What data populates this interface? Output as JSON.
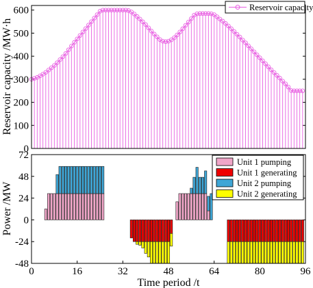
{
  "chart_data": [
    {
      "type": "line",
      "ylabel": "Reservoir capacity /MW·h",
      "xlim": [
        0,
        96
      ],
      "ylim": [
        0,
        620
      ],
      "yticks": [
        0,
        100,
        200,
        300,
        400,
        500,
        600
      ],
      "x_start": 0,
      "series": [
        {
          "name": "Reservoir capacity",
          "color": "#e85fe2",
          "marker": "circle",
          "style": "stem",
          "values": [
            300,
            304,
            308,
            315,
            322,
            330,
            340,
            350,
            360,
            372,
            385,
            398,
            412,
            428,
            444,
            460,
            475,
            490,
            505,
            520,
            535,
            550,
            565,
            580,
            595,
            600,
            600,
            600,
            600,
            600,
            600,
            600,
            600,
            600,
            598,
            592,
            583,
            572,
            561,
            549,
            537,
            523,
            509,
            496,
            484,
            472,
            465,
            463,
            465,
            471,
            480,
            492,
            505,
            519,
            534,
            548,
            563,
            578,
            584,
            585,
            585,
            585,
            585,
            584,
            580,
            571,
            561,
            552,
            542,
            531,
            519,
            507,
            495,
            483,
            470,
            458,
            445,
            432,
            419,
            406,
            393,
            380,
            367,
            354,
            341,
            329,
            317,
            305,
            292,
            280,
            266,
            251,
            250,
            250,
            250,
            250
          ]
        }
      ]
    },
    {
      "type": "bar",
      "stacked": true,
      "xlabel": "Time period /t",
      "ylabel": "Power /MW",
      "xlim": [
        0,
        96
      ],
      "ylim": [
        -48,
        72
      ],
      "xticks": [
        0,
        16,
        32,
        48,
        64,
        80,
        96
      ],
      "yticks": [
        72,
        48,
        24,
        0,
        -24,
        -48
      ],
      "x_start": 1,
      "legend_position": "top-right",
      "series": [
        {
          "name": "Unit 1 pumping",
          "color": "#f0a6c8",
          "values": [
            0,
            0,
            0,
            0,
            12,
            29,
            29,
            29,
            29,
            29,
            29,
            29,
            29,
            29,
            29,
            29,
            29,
            29,
            29,
            29,
            29,
            29,
            29,
            29,
            29,
            0,
            0,
            0,
            0,
            0,
            0,
            0,
            0,
            0,
            0,
            0,
            0,
            0,
            0,
            0,
            0,
            0,
            0,
            0,
            0,
            0,
            0,
            0,
            0,
            0,
            20,
            29,
            29,
            29,
            29,
            29,
            29,
            29,
            29,
            29,
            29,
            10,
            0,
            0,
            0,
            0,
            0,
            0,
            0,
            0,
            0,
            0,
            0,
            0,
            0,
            0,
            0,
            0,
            0,
            0,
            0,
            0,
            0,
            0,
            0,
            0,
            0,
            0,
            0,
            0,
            0,
            0,
            0,
            0,
            0,
            0
          ]
        },
        {
          "name": "Unit 1 generating",
          "color": "#ee0000",
          "values": [
            0,
            0,
            0,
            0,
            0,
            0,
            0,
            0,
            0,
            0,
            0,
            0,
            0,
            0,
            0,
            0,
            0,
            0,
            0,
            0,
            0,
            0,
            0,
            0,
            0,
            0,
            0,
            0,
            0,
            0,
            0,
            0,
            0,
            0,
            -20,
            -24,
            -24,
            -24,
            -24,
            -24,
            -24,
            -24,
            -24,
            -24,
            -24,
            -24,
            -24,
            -24,
            -15,
            0,
            0,
            0,
            0,
            0,
            0,
            0,
            0,
            0,
            0,
            0,
            0,
            0,
            0,
            0,
            0,
            0,
            0,
            0,
            -24,
            -24,
            -24,
            -24,
            -24,
            -24,
            -24,
            -24,
            -24,
            -24,
            -24,
            -24,
            -24,
            -24,
            -24,
            -24,
            -24,
            -24,
            -24,
            -24,
            -24,
            -24,
            -24,
            -24,
            -24,
            -24,
            -24,
            0,
            0,
            0,
            0,
            0
          ]
        },
        {
          "name": "Unit 2 pumping",
          "color": "#3fa6d6",
          "values": [
            0,
            0,
            0,
            0,
            0,
            0,
            0,
            0,
            21,
            30,
            30,
            30,
            30,
            30,
            30,
            30,
            30,
            30,
            30,
            30,
            30,
            30,
            30,
            30,
            30,
            0,
            0,
            0,
            0,
            0,
            0,
            0,
            0,
            0,
            0,
            0,
            0,
            0,
            0,
            0,
            0,
            0,
            0,
            0,
            0,
            0,
            0,
            0,
            0,
            0,
            0,
            0,
            0,
            0,
            0,
            6,
            18,
            29,
            18,
            18,
            25,
            16,
            29,
            0,
            0,
            0,
            0,
            0,
            0,
            0,
            0,
            0,
            0,
            0,
            0,
            0,
            0,
            0,
            0,
            0,
            0,
            0,
            0,
            0,
            0,
            0,
            0,
            0,
            0,
            0,
            0,
            0,
            0,
            0,
            0,
            0
          ]
        },
        {
          "name": "Unit 2 generating",
          "color": "#ffff00",
          "values": [
            0,
            0,
            0,
            0,
            0,
            0,
            0,
            0,
            0,
            0,
            0,
            0,
            0,
            0,
            0,
            0,
            0,
            0,
            0,
            0,
            0,
            0,
            0,
            0,
            0,
            0,
            0,
            0,
            0,
            0,
            0,
            0,
            0,
            0,
            0,
            0,
            -3,
            -4,
            -7,
            -13,
            -17,
            -24,
            -24,
            -24,
            -24,
            -24,
            -24,
            -24,
            -14,
            0,
            0,
            0,
            0,
            0,
            0,
            0,
            0,
            0,
            0,
            0,
            0,
            0,
            0,
            0,
            0,
            0,
            0,
            0,
            -24,
            -24,
            -24,
            -24,
            -24,
            -24,
            -24,
            -24,
            -24,
            -24,
            -24,
            -24,
            -24,
            -24,
            -24,
            -24,
            -24,
            -24,
            -24,
            -24,
            -24,
            -24,
            -24,
            -24,
            -24,
            -24,
            -24,
            0,
            0,
            0,
            0,
            0
          ]
        }
      ]
    }
  ]
}
